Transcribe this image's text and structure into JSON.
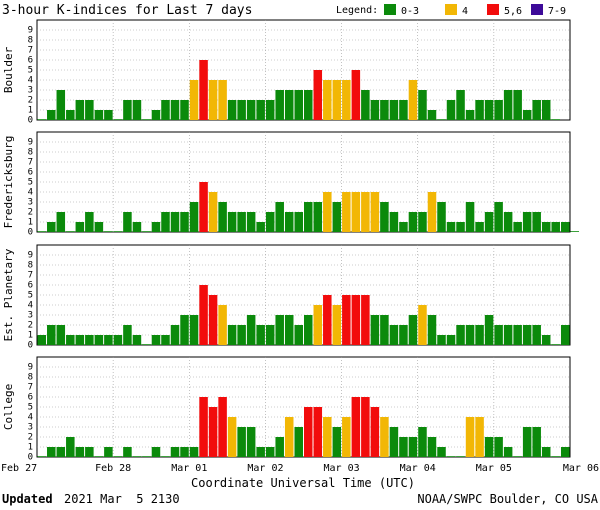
{
  "chart_data": {
    "type": "bar",
    "title": "3-hour K-indices for Last 7 days",
    "legend": {
      "label": "Legend:",
      "entries": [
        {
          "label": "0-3",
          "color": "#0b8a0b"
        },
        {
          "label": "4",
          "color": "#f2b705"
        },
        {
          "label": "5,6",
          "color": "#f20c0c"
        },
        {
          "label": "7-9",
          "color": "#3d0a99"
        }
      ]
    },
    "ylim": [
      0,
      9
    ],
    "y_ticks": [
      "0",
      "1",
      "2",
      "3",
      "4",
      "5",
      "6",
      "7",
      "8",
      "9"
    ],
    "x_ticks": [
      "Feb 27",
      "Feb 28",
      "Mar 01",
      "Mar 02",
      "Mar 03",
      "Mar 04",
      "Mar 05",
      "Mar 06"
    ],
    "xlabel": "Coordinate Universal Time (UTC)",
    "series": [
      {
        "name": "Boulder",
        "values": [
          0,
          1,
          3,
          1,
          2,
          2,
          1,
          1,
          0,
          2,
          2,
          0,
          1,
          2,
          2,
          2,
          4,
          6,
          4,
          4,
          2,
          2,
          2,
          2,
          2,
          3,
          3,
          3,
          3,
          5,
          4,
          4,
          4,
          5,
          3,
          2,
          2,
          2,
          2,
          4,
          3,
          1,
          0,
          2,
          3,
          1,
          2,
          2,
          2,
          3,
          3,
          1,
          2,
          2,
          0
        ]
      },
      {
        "name": "Fredericksburg",
        "values": [
          0,
          1,
          2,
          0,
          1,
          2,
          1,
          0,
          0,
          2,
          1,
          0,
          1,
          2,
          2,
          2,
          3,
          5,
          4,
          3,
          2,
          2,
          2,
          1,
          2,
          3,
          2,
          2,
          3,
          3,
          4,
          3,
          4,
          4,
          4,
          4,
          3,
          2,
          1,
          2,
          2,
          4,
          3,
          1,
          1,
          3,
          1,
          2,
          3,
          2,
          1,
          2,
          2,
          1,
          1,
          1,
          0
        ]
      },
      {
        "name": "Est. Planetary",
        "values": [
          1,
          2,
          2,
          1,
          1,
          1,
          1,
          1,
          1,
          2,
          1,
          0,
          1,
          1,
          2,
          3,
          3,
          6,
          5,
          4,
          2,
          2,
          3,
          2,
          2,
          3,
          3,
          2,
          3,
          4,
          5,
          4,
          5,
          5,
          5,
          3,
          3,
          2,
          2,
          3,
          4,
          3,
          1,
          1,
          2,
          2,
          2,
          3,
          2,
          2,
          2,
          2,
          2,
          1,
          0,
          2
        ]
      },
      {
        "name": "College",
        "values": [
          0,
          1,
          1,
          2,
          1,
          1,
          0,
          1,
          0,
          1,
          0,
          0,
          1,
          0,
          1,
          1,
          1,
          6,
          5,
          6,
          4,
          3,
          3,
          1,
          1,
          2,
          4,
          3,
          5,
          5,
          4,
          3,
          4,
          6,
          6,
          5,
          4,
          3,
          2,
          2,
          3,
          2,
          1,
          0,
          0,
          4,
          4,
          2,
          2,
          1,
          0,
          3,
          3,
          1,
          0,
          1
        ]
      }
    ]
  },
  "footer": {
    "updated_label": "Updated",
    "updated_value": "2021 Mar  5 2130",
    "source": "NOAA/SWPC Boulder, CO USA"
  }
}
